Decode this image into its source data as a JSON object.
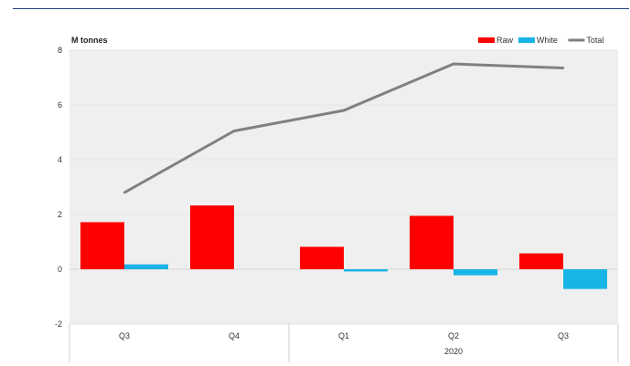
{
  "chart_data": {
    "type": "bar",
    "unit_label": "M tonnes",
    "categories": [
      "Q3",
      "Q4",
      "Q1",
      "Q2",
      "Q3"
    ],
    "group_label": "2020",
    "ylim": [
      -2,
      8
    ],
    "yticks": [
      -2,
      0,
      2,
      4,
      6,
      8
    ],
    "grid": true,
    "legend_position": "top-right",
    "series": [
      {
        "name": "Raw",
        "kind": "bar",
        "color": "#ff0000",
        "values": [
          1.72,
          2.33,
          0.82,
          1.95,
          0.58
        ]
      },
      {
        "name": "White",
        "kind": "bar",
        "color": "#19b4e6",
        "values": [
          0.18,
          0.0,
          -0.08,
          -0.22,
          -0.72
        ]
      },
      {
        "name": "Total",
        "kind": "line",
        "color": "#808080",
        "values": [
          2.8,
          5.05,
          5.8,
          7.5,
          7.35
        ]
      }
    ]
  }
}
